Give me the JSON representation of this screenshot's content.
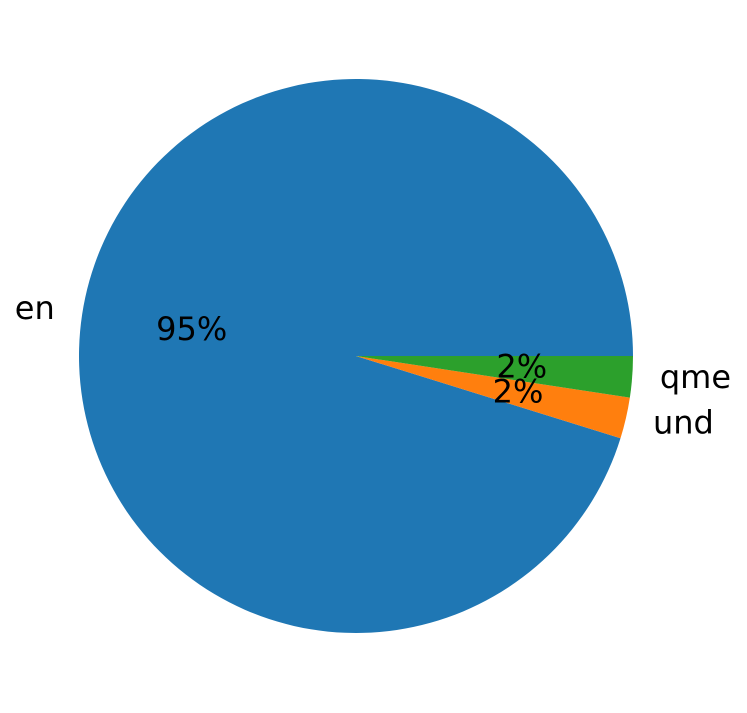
{
  "chart_data": {
    "type": "pie",
    "categories": [
      "en",
      "und",
      "qme"
    ],
    "values": [
      95.2,
      2.4,
      2.4
    ],
    "value_labels": [
      "95%",
      "2%",
      "2%"
    ],
    "colors": [
      "#1f77b4",
      "#ff7f0e",
      "#2ca02c"
    ]
  }
}
